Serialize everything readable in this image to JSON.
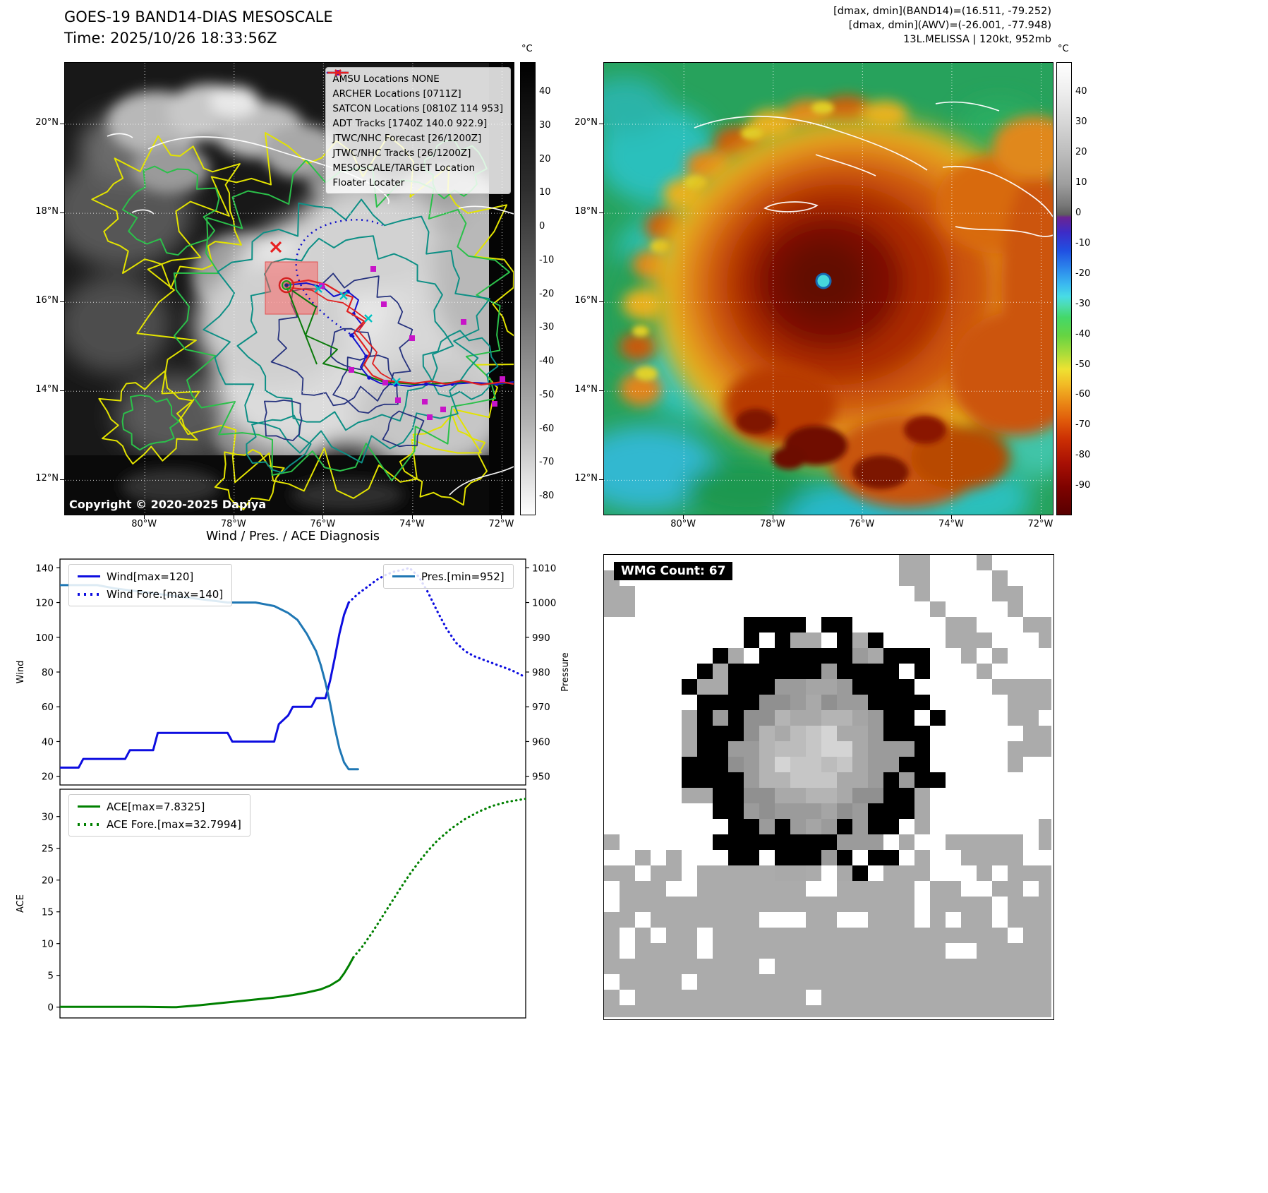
{
  "panel_tl": {
    "title": "GOES-19 BAND14-DIAS MESOSCALE",
    "subtitle": "Time: 2025/10/26 18:33:56Z",
    "copyright": "Copyright © 2020-2025 Dapiya",
    "legend": [
      {
        "label": "AMSU Locations NONE",
        "marker": "square",
        "color": "#c814c8"
      },
      {
        "label": "ARCHER Locations [0711Z]",
        "marker": "square",
        "color": "#c814c8"
      },
      {
        "label": "SATCON Locations [0810Z 114 953]",
        "marker": "x",
        "color": "#00b4b4"
      },
      {
        "label": "ADT Tracks [1740Z 140.0 922.9]",
        "marker": "line",
        "color": "#0a7a0a"
      },
      {
        "label": "JTWC/NHC Forecast [26/1200Z]",
        "marker": "dotted",
        "color": "#0d0de0"
      },
      {
        "label": "JTWC/NHC Tracks [26/1200Z]",
        "marker": "line-dot",
        "color": "#0d0de0"
      },
      {
        "label": "MESOSCALE/TARGET Location",
        "marker": "x",
        "color": "#e82020"
      },
      {
        "label": "Floater Locater",
        "marker": "line",
        "color": "#e82020"
      }
    ],
    "colorbar": {
      "unit": "°C",
      "ticks": [
        40,
        30,
        20,
        10,
        0,
        -10,
        -20,
        -30,
        -40,
        -50,
        -60,
        -70,
        -80
      ],
      "top_value": 49,
      "bottom_value": -85
    },
    "lat_labels": [
      "20°N",
      "18°N",
      "16°N",
      "14°N",
      "12°N"
    ],
    "lon_labels": [
      "80°W",
      "78°W",
      "76°W",
      "74°W",
      "72°W"
    ]
  },
  "panel_tr": {
    "info_lines": [
      "[dmax, dmin](BAND14)=(16.511, -79.252)",
      "[dmax, dmin](AWV)=(-26.001, -77.948)",
      "13L.MELISSA | 120kt, 952mb"
    ],
    "colorbar": {
      "unit": "°C",
      "ticks": [
        40,
        30,
        20,
        10,
        0,
        -10,
        -20,
        -30,
        -40,
        -50,
        -60,
        -70,
        -80,
        -90
      ],
      "top_value": 50,
      "bottom_value": -99
    },
    "lat_labels": [
      "20°N",
      "18°N",
      "16°N",
      "14°N",
      "12°N"
    ],
    "lon_labels": [
      "80°W",
      "78°W",
      "76°W",
      "74°W",
      "72°W"
    ]
  },
  "panel_bl": {
    "title": "Wind / Pres. / ACE Diagnosis"
  },
  "panel_br": {
    "wmg_label": "WMG Count: 67"
  },
  "chart_data": [
    {
      "type": "line",
      "title": "Wind / Pres. / ACE Diagnosis",
      "ylabel_left": "Wind",
      "ylabel_right": "Pressure",
      "ylim_left": [
        15,
        145
      ],
      "yticks_left": [
        20,
        40,
        60,
        80,
        100,
        120,
        140
      ],
      "ylim_right": [
        947.5,
        1012.5
      ],
      "yticks_right": [
        950,
        960,
        970,
        980,
        990,
        1000,
        1010
      ],
      "xlim": [
        0,
        100
      ],
      "grid": false,
      "legend_positions": [
        "upper left",
        "upper right"
      ],
      "series": [
        {
          "name": "Wind[max=120]",
          "axis": "left",
          "color": "#0d0de0",
          "style": "solid",
          "width": 3,
          "x": [
            0,
            4,
            5,
            9,
            10,
            14,
            15,
            20,
            21,
            36,
            37,
            46,
            47,
            49,
            50,
            54,
            55,
            57,
            58,
            59,
            60,
            61,
            62
          ],
          "y": [
            25,
            25,
            30,
            30,
            30,
            30,
            35,
            35,
            45,
            45,
            40,
            40,
            50,
            55,
            60,
            60,
            65,
            65,
            75,
            88,
            102,
            113,
            120
          ]
        },
        {
          "name": "Wind Fore.[max=140]",
          "axis": "left",
          "color": "#0d0de0",
          "style": "dotted",
          "width": 3.2,
          "x": [
            62,
            64,
            66,
            68,
            70,
            72,
            74,
            75,
            77,
            79,
            81,
            83,
            85,
            87,
            89,
            91,
            94,
            97,
            100
          ],
          "y": [
            120,
            125,
            129,
            133,
            136,
            138,
            139,
            140,
            135,
            126,
            115,
            105,
            97,
            92,
            89,
            87,
            84,
            81,
            77
          ]
        },
        {
          "name": "Pres.[min=952]",
          "axis": "right",
          "color": "#1f77b4",
          "style": "solid",
          "width": 3,
          "x": [
            0,
            8,
            12,
            18,
            24,
            30,
            36,
            42,
            46,
            49,
            51,
            53,
            55,
            56,
            57,
            58,
            59,
            60,
            61,
            62,
            64
          ],
          "y": [
            1005,
            1005,
            1004,
            1003,
            1002,
            1001,
            1000,
            1000,
            999,
            997,
            995,
            991,
            986,
            982,
            977,
            971,
            964,
            958,
            954,
            952,
            952
          ]
        }
      ]
    },
    {
      "type": "line",
      "ylabel_left": "ACE",
      "ylim_left": [
        -1.7,
        34.3
      ],
      "yticks_left": [
        0,
        5,
        10,
        15,
        20,
        25,
        30
      ],
      "xlim": [
        0,
        100
      ],
      "grid": false,
      "legend_positions": [
        "upper left"
      ],
      "series": [
        {
          "name": "ACE[max=7.8325]",
          "axis": "left",
          "color": "#008000",
          "style": "solid",
          "width": 3,
          "x": [
            0,
            6,
            12,
            18,
            24,
            25,
            30,
            34,
            38,
            42,
            46,
            50,
            53,
            56,
            58,
            60,
            61,
            62,
            63
          ],
          "y": [
            0.05,
            0.05,
            0.05,
            0.05,
            0.0,
            0.0,
            0.3,
            0.6,
            0.9,
            1.2,
            1.5,
            1.9,
            2.3,
            2.8,
            3.4,
            4.3,
            5.3,
            6.5,
            7.83
          ]
        },
        {
          "name": "ACE Fore.[max=32.7994]",
          "axis": "left",
          "color": "#008000",
          "style": "dotted",
          "width": 3.2,
          "x": [
            63,
            65,
            67,
            69,
            71,
            73,
            75,
            77,
            79,
            81,
            84,
            87,
            90,
            93,
            96,
            100
          ],
          "y": [
            7.83,
            9.6,
            11.7,
            14.0,
            16.3,
            18.6,
            20.8,
            22.8,
            24.6,
            26.2,
            28.1,
            29.6,
            30.8,
            31.7,
            32.3,
            32.8
          ]
        }
      ]
    }
  ]
}
